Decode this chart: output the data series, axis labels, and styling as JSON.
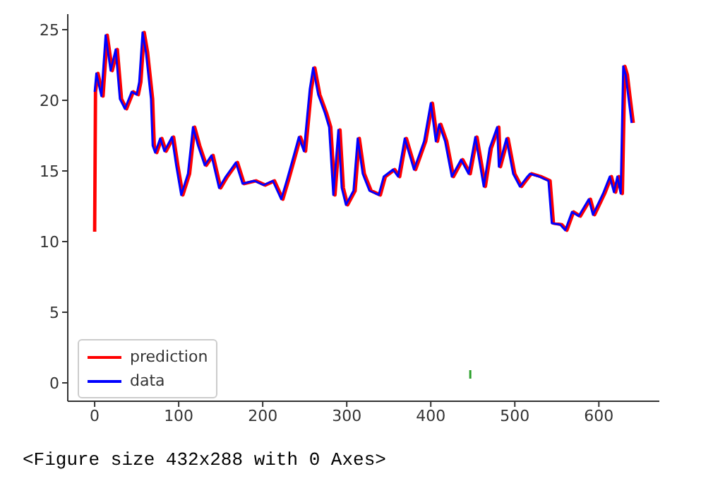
{
  "chart_data": {
    "type": "line",
    "x": [
      0,
      2,
      8,
      13,
      19,
      25,
      30,
      36,
      44,
      50,
      53,
      57,
      61,
      67,
      69,
      72,
      78,
      83,
      92,
      97,
      103,
      111,
      117,
      123,
      131,
      139,
      148,
      156,
      168,
      176,
      190,
      201,
      212,
      222,
      229,
      237,
      243,
      249,
      256,
      260,
      266,
      274,
      279,
      284,
      290,
      294,
      299,
      308,
      313,
      319,
      327,
      338,
      344,
      355,
      361,
      369,
      380,
      392,
      400,
      406,
      410,
      417,
      425,
      436,
      445,
      453,
      463,
      470,
      479,
      481,
      490,
      498,
      506,
      515,
      518,
      529,
      540,
      544,
      554,
      560,
      568,
      576,
      588,
      593,
      605,
      613,
      618,
      622,
      626,
      629,
      632,
      635,
      639
    ],
    "series": [
      {
        "name": "prediction",
        "color": "#ff0000",
        "x": [
          0,
          1,
          4,
          10,
          15,
          21,
          27,
          32,
          38,
          46,
          52,
          55,
          59,
          63,
          69,
          71,
          74,
          80,
          85,
          94,
          99,
          105,
          113,
          119,
          125,
          133,
          141,
          150,
          158,
          170,
          178,
          192,
          203,
          214,
          224,
          231,
          239,
          245,
          251,
          258,
          262,
          268,
          276,
          281,
          286,
          292,
          296,
          301,
          310,
          315,
          321,
          329,
          340,
          346,
          357,
          363,
          371,
          382,
          394,
          402,
          408,
          412,
          419,
          427,
          438,
          447,
          455,
          465,
          472,
          481,
          483,
          492,
          500,
          508,
          517,
          520,
          531,
          542,
          546,
          556,
          562,
          570,
          578,
          590,
          595,
          607,
          615,
          620,
          624,
          628,
          631,
          634,
          637,
          641
        ],
        "values": [
          10.7,
          20.6,
          21.9,
          20.3,
          24.6,
          22.1,
          23.6,
          20.1,
          19.4,
          20.6,
          20.4,
          21.3,
          24.8,
          23.4,
          20.1,
          16.8,
          16.3,
          17.3,
          16.4,
          17.4,
          15.4,
          13.3,
          14.8,
          18.1,
          16.8,
          15.4,
          16.1,
          13.8,
          14.6,
          15.6,
          14.1,
          14.3,
          14.0,
          14.3,
          13.0,
          14.4,
          16.1,
          17.4,
          16.4,
          20.8,
          22.3,
          20.4,
          19.1,
          18.1,
          13.3,
          17.9,
          13.8,
          12.6,
          13.6,
          17.3,
          14.8,
          13.6,
          13.3,
          14.6,
          15.1,
          14.6,
          17.3,
          15.1,
          17.1,
          19.8,
          17.1,
          18.3,
          17.1,
          14.6,
          15.8,
          14.8,
          17.4,
          13.9,
          16.6,
          18.1,
          15.3,
          17.3,
          14.8,
          13.9,
          14.6,
          14.8,
          14.6,
          14.3,
          11.3,
          11.2,
          10.8,
          12.1,
          11.8,
          13.0,
          11.9,
          13.4,
          14.6,
          13.5,
          14.6,
          13.4,
          22.4,
          21.8,
          20.3,
          18.4
        ]
      },
      {
        "name": "data",
        "color": "#0000ff",
        "values": [
          20.6,
          21.9,
          20.3,
          24.6,
          22.1,
          23.6,
          20.1,
          19.4,
          20.6,
          20.4,
          21.3,
          24.8,
          23.4,
          20.1,
          16.8,
          16.3,
          17.3,
          16.4,
          17.4,
          15.4,
          13.3,
          14.8,
          18.1,
          16.8,
          15.4,
          16.1,
          13.8,
          14.6,
          15.6,
          14.1,
          14.3,
          14.0,
          14.3,
          13.0,
          14.4,
          16.1,
          17.4,
          16.4,
          20.8,
          22.3,
          20.4,
          19.1,
          18.1,
          13.3,
          17.9,
          13.8,
          12.6,
          13.6,
          17.3,
          14.8,
          13.6,
          13.3,
          14.6,
          15.1,
          14.6,
          17.3,
          15.1,
          17.1,
          19.8,
          17.1,
          18.3,
          17.1,
          14.6,
          15.8,
          14.8,
          17.4,
          13.9,
          16.6,
          18.1,
          15.3,
          17.3,
          14.8,
          13.9,
          14.6,
          14.8,
          14.6,
          14.3,
          11.3,
          11.2,
          10.8,
          12.1,
          11.8,
          13.0,
          11.9,
          13.4,
          14.6,
          13.5,
          14.6,
          13.4,
          22.4,
          21.8,
          20.3,
          18.4
        ]
      },
      {
        "color": "#2ca02c",
        "x": [
          447,
          447
        ],
        "values": [
          0.3,
          0.9
        ]
      }
    ],
    "xlim": [
      -32,
      672
    ],
    "ylim": [
      -1.3,
      26.1
    ],
    "xticks": [
      0,
      100,
      200,
      300,
      400,
      500,
      600
    ],
    "yticks": [
      0,
      5,
      10,
      15,
      20,
      25
    ],
    "legend": "lower left",
    "grid": false,
    "marker": "none",
    "line_style": "solid",
    "annotations": [
      "<Figure size 432x288 with 0 Axes>"
    ]
  }
}
